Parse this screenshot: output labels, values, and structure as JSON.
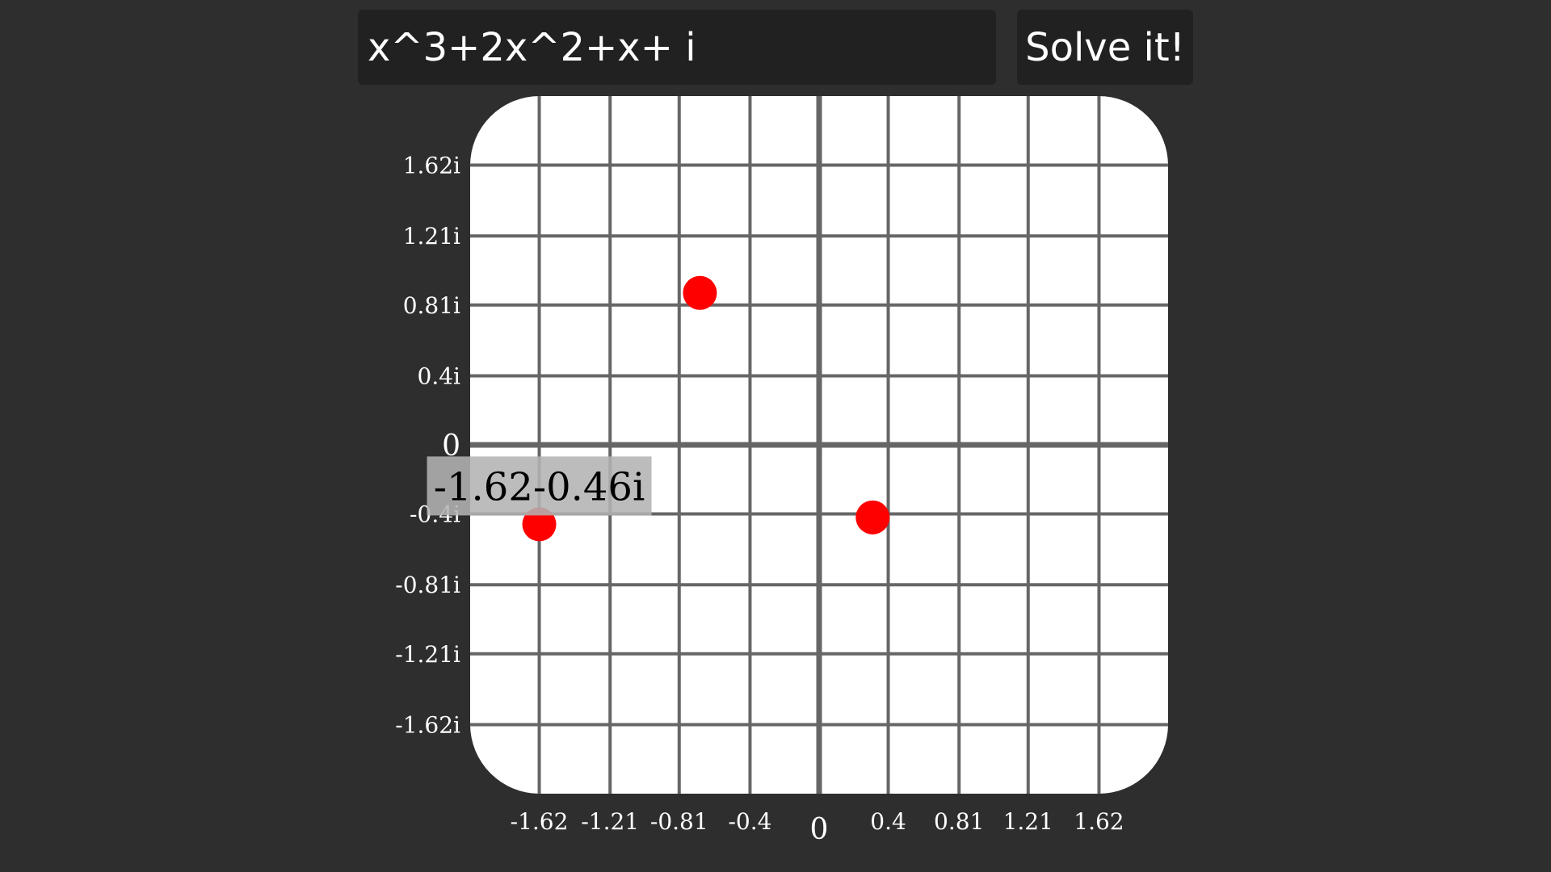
{
  "equation_input": {
    "value": "x^3+2x^2+x+ i"
  },
  "solve_button": {
    "label": "Solve it!"
  },
  "chart_data": {
    "type": "scatter",
    "title": "",
    "xlabel": "",
    "ylabel": "",
    "xlim": [
      -2.02,
      2.02
    ],
    "ylim": [
      -2.02,
      2.02
    ],
    "grid": true,
    "x_ticks": [
      -1.62,
      -1.21,
      -0.81,
      -0.4,
      0,
      0.4,
      0.81,
      1.21,
      1.62
    ],
    "x_tick_labels": [
      "-1.62",
      "-1.21",
      "-0.81",
      "-0.4",
      "0",
      "0.4",
      "0.81",
      "1.21",
      "1.62"
    ],
    "y_ticks": [
      1.62,
      1.21,
      0.81,
      0.4,
      0,
      -0.4,
      -0.81,
      -1.21,
      -1.62
    ],
    "y_tick_labels": [
      "1.62i",
      "1.21i",
      "0.81i",
      "0.4i",
      "0",
      "-0.4i",
      "-0.81i",
      "-1.21i",
      "-1.62i"
    ],
    "points": [
      {
        "x": -0.69,
        "y": 0.88
      },
      {
        "x": -1.62,
        "y": -0.46
      },
      {
        "x": 0.31,
        "y": -0.42
      }
    ],
    "tooltip": {
      "point_index": 1,
      "text": "-1.62-0.46i"
    },
    "colors": {
      "plot_background": "#ffffff",
      "grid": "#666666",
      "point": "#ff0000",
      "tooltip_background": "#b3b3b3"
    }
  }
}
